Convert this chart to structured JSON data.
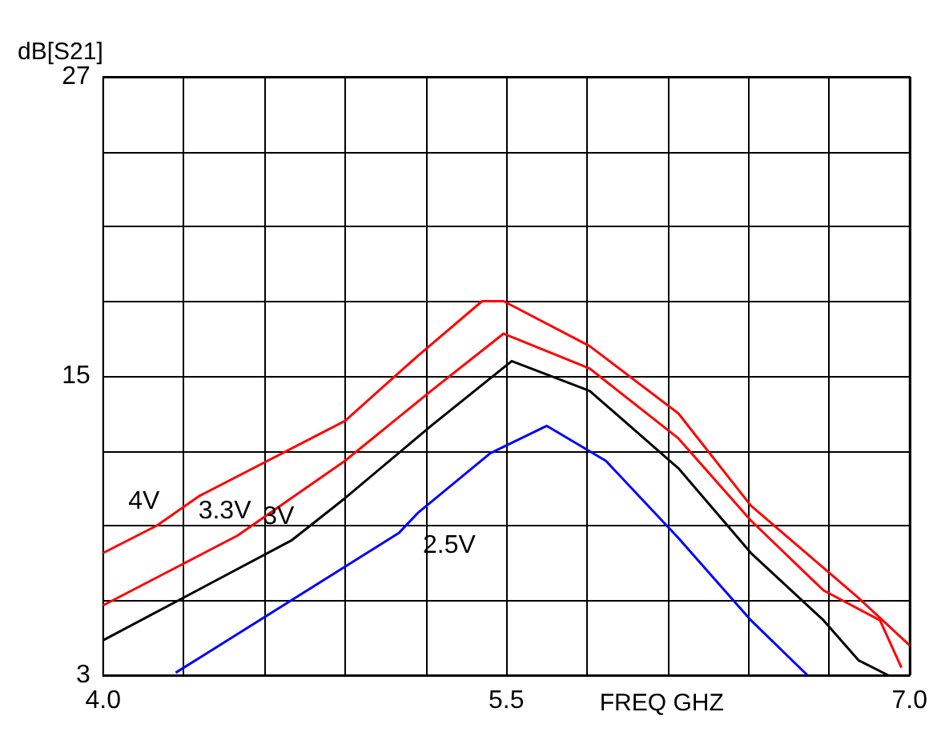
{
  "chart_data": {
    "type": "line",
    "xlabel": "FREQ GHZ",
    "ylabel": "dB[S21]",
    "xlim": [
      4.0,
      7.0
    ],
    "ylim": [
      3,
      27
    ],
    "xticks": [
      {
        "value": 4.0,
        "label": "4.0"
      },
      {
        "value": 4.3,
        "label": null
      },
      {
        "value": 4.6,
        "label": null
      },
      {
        "value": 4.9,
        "label": null
      },
      {
        "value": 5.2,
        "label": null
      },
      {
        "value": 5.5,
        "label": "5.5"
      },
      {
        "value": 5.8,
        "label": null
      },
      {
        "value": 6.1,
        "label": null
      },
      {
        "value": 6.4,
        "label": null
      },
      {
        "value": 6.7,
        "label": null
      },
      {
        "value": 7.0,
        "label": "7.0"
      }
    ],
    "yticks": [
      3,
      {
        "value": 6,
        "label": null
      },
      {
        "value": 9,
        "label": null
      },
      {
        "value": 12,
        "label": null
      },
      15,
      {
        "value": 18,
        "label": null
      },
      {
        "value": 21,
        "label": null
      },
      {
        "value": 24,
        "label": null
      },
      27
    ],
    "grid": true,
    "marker": "none",
    "line_style": "solid",
    "series": [
      {
        "name": "4V",
        "color": "#ff0000",
        "x": [
          4.0,
          4.2,
          4.36,
          4.9,
          5.17,
          5.41,
          5.49,
          5.81,
          6.14,
          6.41,
          6.68,
          6.81,
          7.0
        ],
        "values": [
          7.9,
          9.0,
          10.2,
          13.2,
          15.8,
          18.0,
          18.0,
          16.2,
          13.5,
          9.8,
          7.3,
          6.1,
          4.2
        ]
      },
      {
        "name": "3.3V",
        "color": "#ff0000",
        "x": [
          4.0,
          4.5,
          4.9,
          5.22,
          5.49,
          5.81,
          6.14,
          6.41,
          6.68,
          6.89,
          6.97
        ],
        "values": [
          5.8,
          8.6,
          11.6,
          14.4,
          16.7,
          15.3,
          12.5,
          9.2,
          6.4,
          5.2,
          3.3
        ]
      },
      {
        "name": "3V",
        "color": "#000000",
        "x": [
          4.0,
          4.7,
          4.9,
          5.22,
          5.52,
          5.81,
          6.14,
          6.41,
          6.68,
          6.81,
          6.92
        ],
        "values": [
          4.4,
          8.4,
          10.1,
          13.0,
          15.6,
          14.4,
          11.3,
          7.9,
          5.2,
          3.6,
          3.0
        ]
      },
      {
        "name": "2.5V",
        "color": "#0000ff",
        "x": [
          4.27,
          5.1,
          5.17,
          5.44,
          5.65,
          5.87,
          6.14,
          6.41,
          6.62
        ],
        "values": [
          3.1,
          8.7,
          9.5,
          11.9,
          13.0,
          11.6,
          8.5,
          5.2,
          3.0
        ]
      }
    ]
  }
}
